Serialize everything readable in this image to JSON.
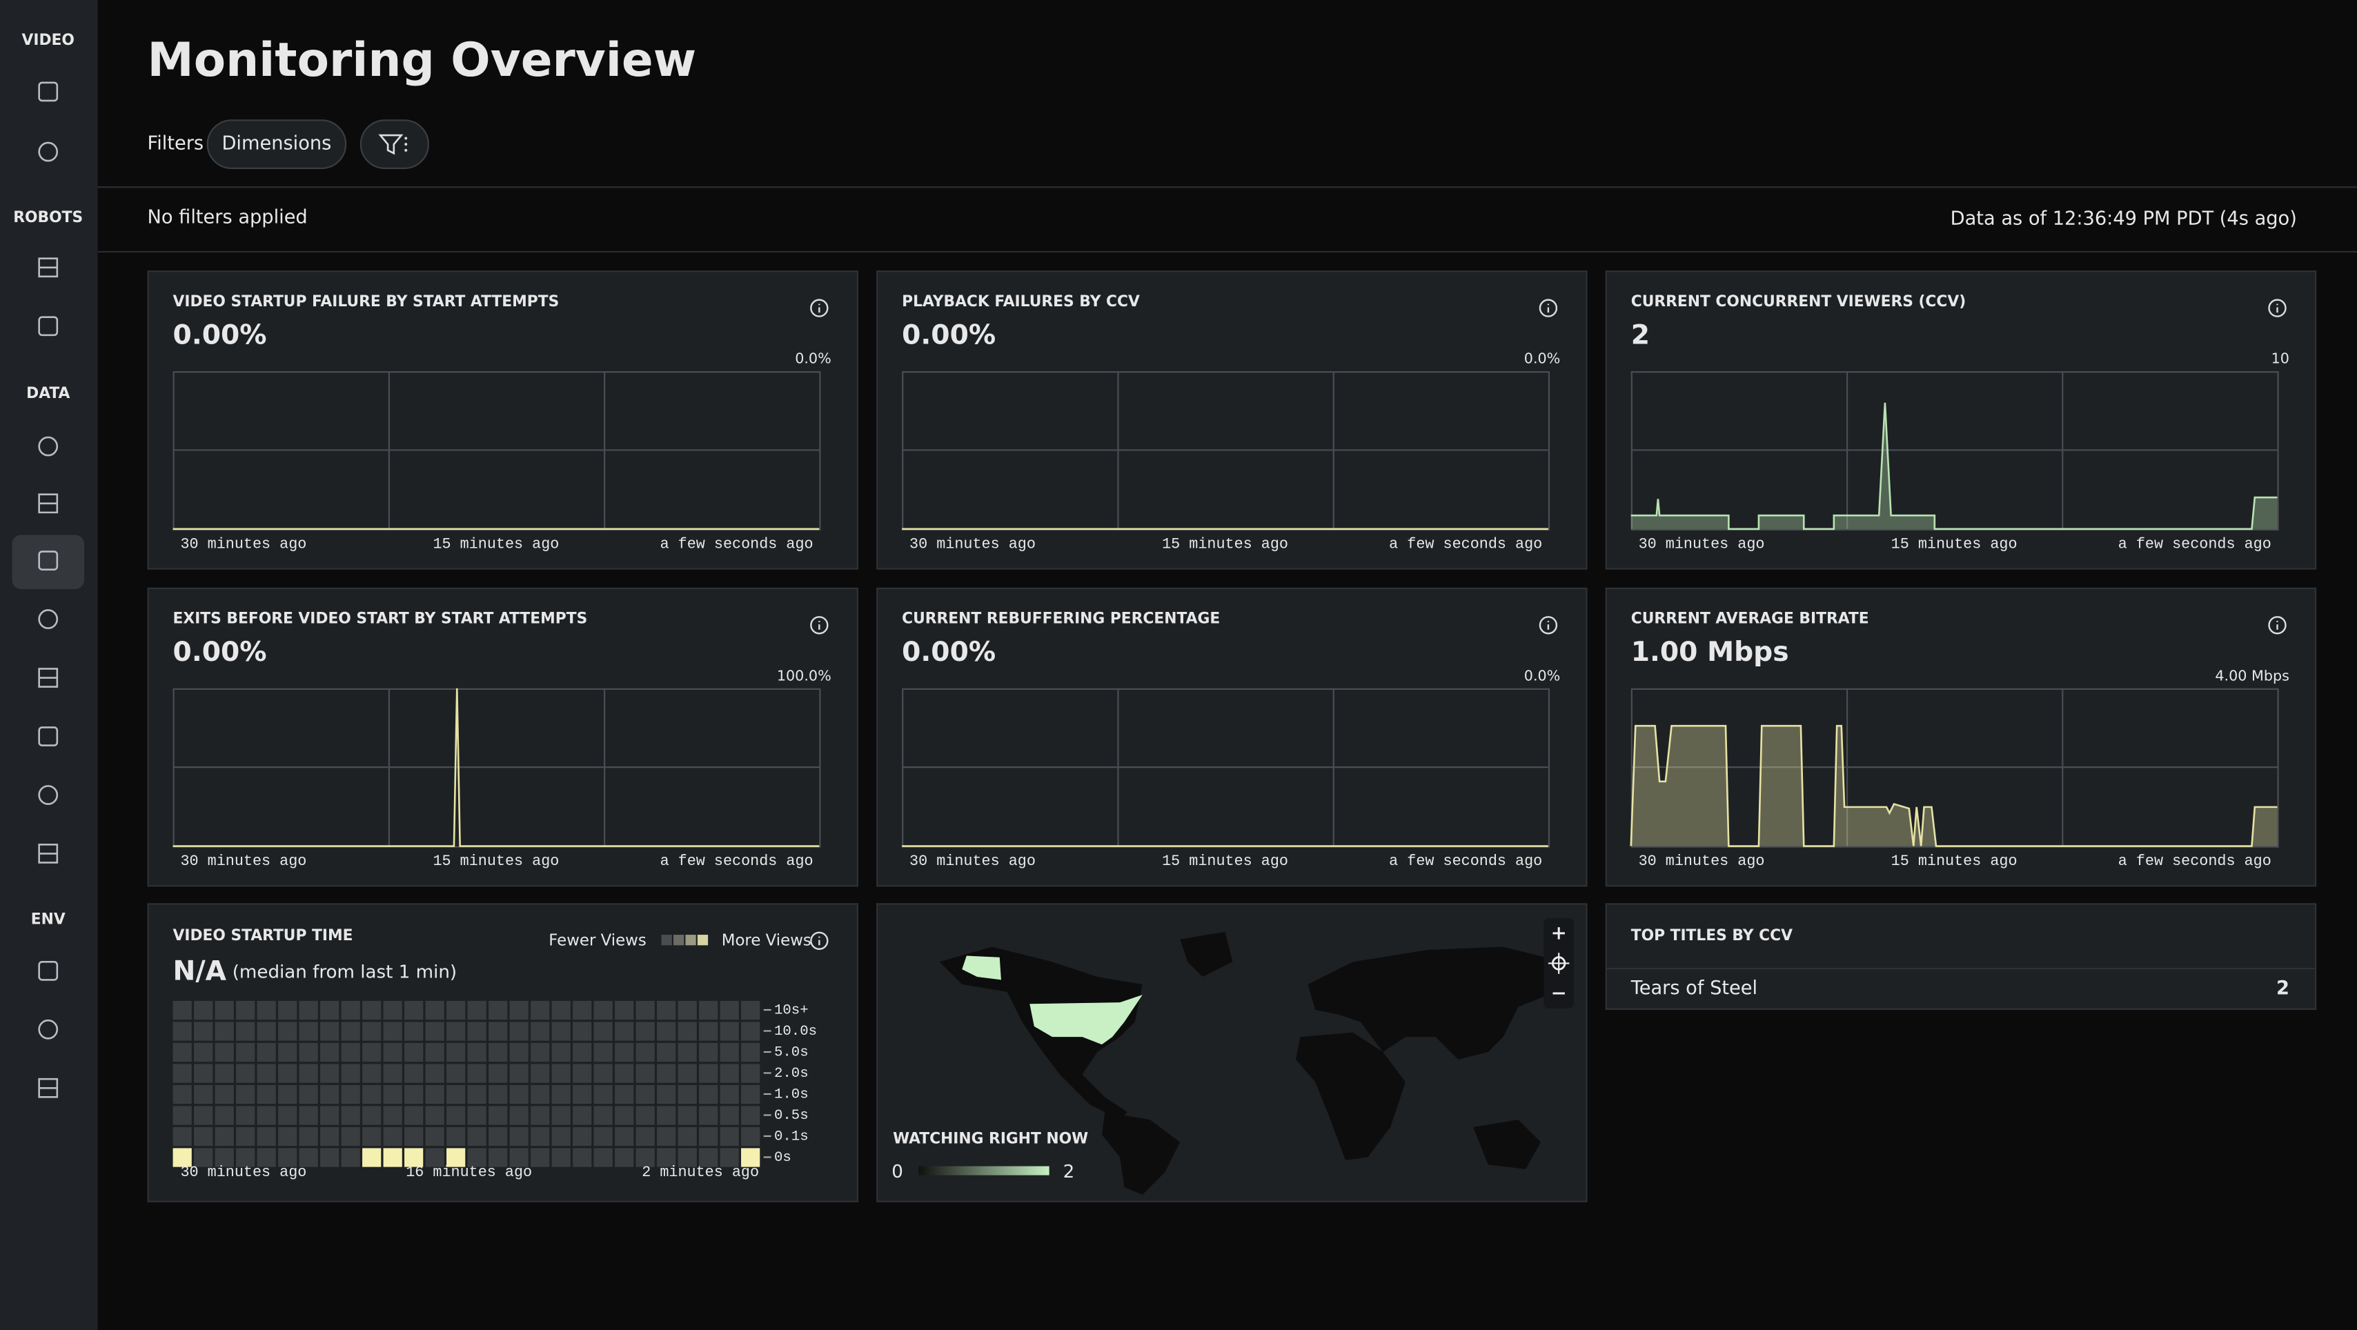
{
  "sidebar": {
    "sections": [
      "VIDEO",
      "ROBOTS",
      "DATA",
      "ENV"
    ]
  },
  "header": {
    "title": "Monitoring Overview",
    "filters_label": "Filters",
    "dimensions_button": "Dimensions"
  },
  "status": {
    "filters": "No filters applied",
    "data_as_of": "Data as of 12:36:49 PM PDT (4s ago)"
  },
  "chart_x_labels": [
    "30 minutes ago",
    "15 minutes ago",
    "a few seconds ago"
  ],
  "panels": [
    {
      "title": "VIDEO STARTUP FAILURE BY START ATTEMPTS",
      "value": "0.00%",
      "max_label": "0.0%"
    },
    {
      "title": "PLAYBACK FAILURES BY CCV",
      "value": "0.00%",
      "max_label": "0.0%"
    },
    {
      "title": "CURRENT CONCURRENT VIEWERS (CCV)",
      "value": 2,
      "max_label": 10
    },
    {
      "title": "EXITS BEFORE VIDEO START BY START ATTEMPTS",
      "value": "0.00%",
      "max_label": "100.0%"
    },
    {
      "title": "CURRENT REBUFFERING PERCENTAGE",
      "value": "0.00%",
      "max_label": "0.0%"
    },
    {
      "title": "CURRENT AVERAGE BITRATE",
      "value": "1.00 Mbps",
      "max_label": "4.00 Mbps"
    }
  ],
  "startup_time": {
    "title": "VIDEO STARTUP TIME",
    "value": "N/A",
    "value_note": "(median from last 1 min)",
    "legend_low": "Fewer Views",
    "legend_high": "More Views",
    "y_labels": [
      "10s+",
      "10.0s",
      "5.0s",
      "2.0s",
      "1.0s",
      "0.5s",
      "0.1s",
      "0s"
    ],
    "x_labels": [
      "30 minutes ago",
      "16 minutes ago",
      "2 minutes ago"
    ]
  },
  "map": {
    "title": "WATCHING RIGHT NOW",
    "scale_min": 0,
    "scale_max": 2
  },
  "top_titles": {
    "title": "TOP TITLES BY CCV",
    "rows": [
      {
        "name": "Tears of Steel",
        "ccv": 2
      }
    ]
  }
}
